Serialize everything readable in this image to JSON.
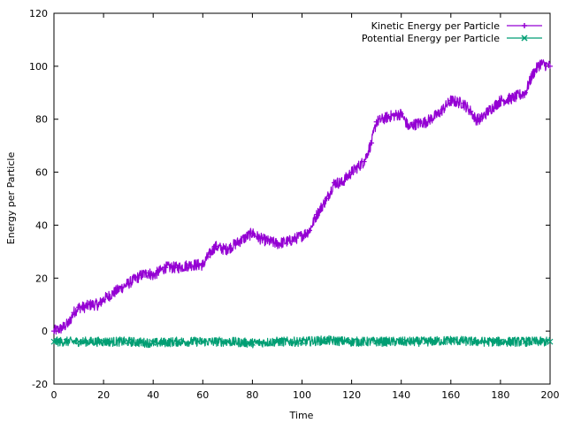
{
  "chart_data": {
    "type": "line",
    "title": "",
    "xlabel": "Time",
    "ylabel": "Energy per Particle",
    "xlim": [
      0,
      200
    ],
    "ylim": [
      -20,
      120
    ],
    "xticks": [
      0,
      20,
      40,
      60,
      80,
      100,
      120,
      140,
      160,
      180,
      200
    ],
    "yticks": [
      -20,
      0,
      20,
      40,
      60,
      80,
      100,
      120
    ],
    "grid": false,
    "legend_position": "top-right",
    "series": [
      {
        "name": "Kinetic Energy per Particle",
        "color": "#9400d3",
        "marker": "plus",
        "noise_amplitude": 2.2,
        "x": [
          0,
          3,
          6,
          8,
          10,
          12,
          15,
          18,
          20,
          25,
          30,
          35,
          38,
          40,
          45,
          50,
          55,
          60,
          62,
          65,
          68,
          70,
          75,
          80,
          83,
          86,
          90,
          95,
          100,
          103,
          106,
          110,
          113,
          116,
          120,
          125,
          128,
          130,
          135,
          140,
          143,
          145,
          150,
          155,
          160,
          165,
          168,
          170,
          172,
          175,
          180,
          185,
          190,
          193,
          196,
          200
        ],
        "y": [
          0,
          1,
          3,
          7,
          9,
          9,
          10,
          10,
          12,
          15,
          18,
          21,
          22,
          21,
          24,
          24,
          25,
          25,
          28,
          32,
          31,
          31,
          34,
          37,
          35,
          34,
          33,
          34,
          36,
          38,
          44,
          50,
          56,
          56,
          60,
          64,
          71,
          79,
          81,
          82,
          77,
          78,
          79,
          82,
          87,
          86,
          83,
          80,
          80,
          83,
          87,
          88,
          90,
          97,
          101,
          100
        ]
      },
      {
        "name": "Potential Energy per Particle",
        "color": "#009e73",
        "marker": "cross",
        "noise_amplitude": 1.8,
        "x": [
          0,
          5,
          10,
          20,
          30,
          40,
          50,
          60,
          70,
          80,
          90,
          100,
          110,
          120,
          130,
          140,
          150,
          160,
          170,
          180,
          190,
          200
        ],
        "y": [
          -4,
          -4,
          -4,
          -4,
          -4,
          -4.5,
          -4,
          -4,
          -4,
          -4.5,
          -4,
          -4,
          -3.5,
          -4,
          -4,
          -4,
          -4,
          -3.5,
          -4,
          -4,
          -4,
          -4
        ]
      }
    ]
  }
}
